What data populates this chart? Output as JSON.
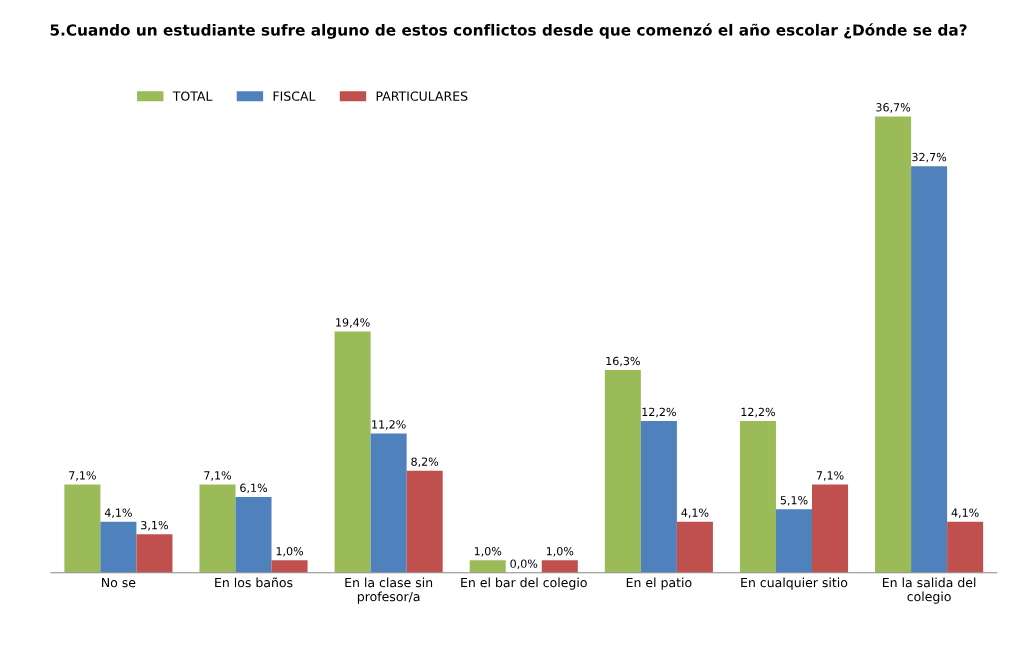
{
  "chart_data": {
    "type": "bar",
    "title": "5.Cuando un estudiante sufre alguno de estos conflictos desde que comenzó el año escolar ¿Dónde se da?",
    "categories": [
      "No se",
      "En los baños",
      "En la clase sin\nprofesor/a",
      "En el bar del colegio",
      "En el patio",
      "En cualquier sitio",
      "En la salida del\ncolegio"
    ],
    "series": [
      {
        "name": "TOTAL",
        "color": "#9bbb59",
        "values": [
          7.1,
          7.1,
          19.4,
          1.0,
          16.3,
          12.2,
          36.7
        ],
        "value_labels": [
          "7,1%",
          "7,1%",
          "19,4%",
          "1,0%",
          "16,3%",
          "12,2%",
          "36,7%"
        ]
      },
      {
        "name": "FISCAL",
        "color": "#4f81bd",
        "values": [
          4.1,
          6.1,
          11.2,
          0.0,
          12.2,
          5.1,
          32.7
        ],
        "value_labels": [
          "4,1%",
          "6,1%",
          "11,2%",
          "0,0%",
          "12,2%",
          "5,1%",
          "32,7%"
        ]
      },
      {
        "name": "PARTICULARES",
        "color": "#c0504d",
        "values": [
          3.1,
          1.0,
          8.2,
          1.0,
          4.1,
          7.1,
          4.1
        ],
        "value_labels": [
          "3,1%",
          "1,0%",
          "8,2%",
          "1,0%",
          "4,1%",
          "7,1%",
          "4,1%"
        ]
      }
    ],
    "legend": "top left",
    "grid": false
  }
}
